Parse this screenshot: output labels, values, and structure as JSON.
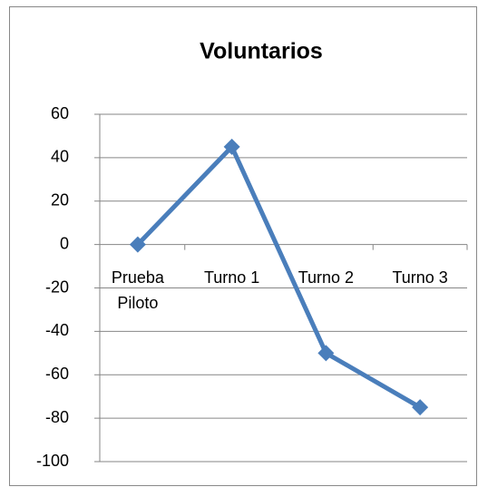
{
  "chart_data": {
    "type": "line",
    "title": "Voluntarios",
    "categories": [
      "Prueba Piloto",
      "Turno 1",
      "Turno 2",
      "Turno 3"
    ],
    "series": [
      {
        "name": "Voluntarios",
        "color": "#4a7ebb",
        "values": [
          0,
          45,
          -50,
          -75
        ]
      }
    ],
    "ylim": [
      -100,
      60
    ],
    "yticks": [
      -100,
      -80,
      -60,
      -40,
      -20,
      0,
      20,
      40,
      60
    ],
    "grid": true
  }
}
